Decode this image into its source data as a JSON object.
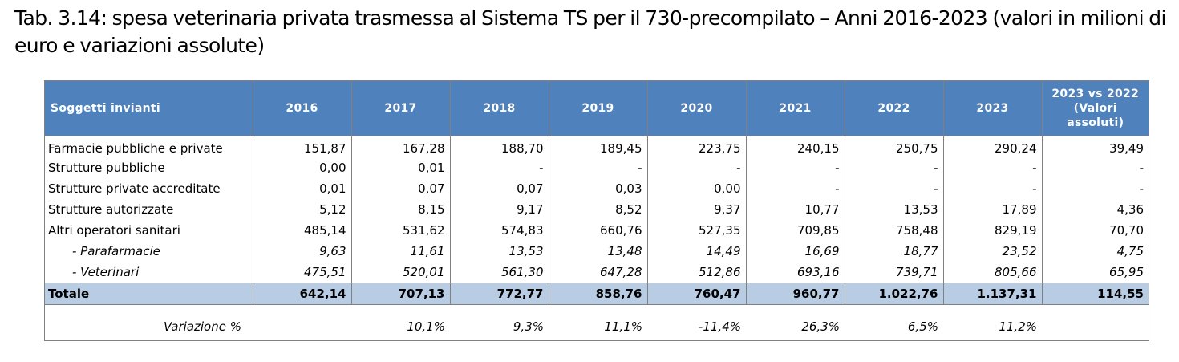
{
  "caption": "Tab. 3.14: spesa veterinaria privata trasmessa al Sistema TS per il 730-precompilato – Anni 2016-2023 (valori in milioni di euro e variazioni assolute)",
  "table": {
    "headers": [
      "Soggetti invianti",
      "2016",
      "2017",
      "2018",
      "2019",
      "2020",
      "2021",
      "2022",
      "2023",
      "2023 vs 2022",
      "(Valori assoluti)"
    ],
    "rows": [
      {
        "label": "Farmacie pubbliche e private",
        "values": [
          "151,87",
          "167,28",
          "188,70",
          "189,45",
          "223,75",
          "240,15",
          "250,75",
          "290,24",
          "39,49"
        ]
      },
      {
        "label": "Strutture pubbliche",
        "values": [
          "0,00",
          "0,01",
          "-",
          "-",
          "-",
          "-",
          "-",
          "-",
          "-"
        ]
      },
      {
        "label": "Strutture private accreditate",
        "values": [
          "0,01",
          "0,07",
          "0,07",
          "0,03",
          "0,00",
          "-",
          "-",
          "-",
          "-"
        ]
      },
      {
        "label": "Strutture autorizzate",
        "values": [
          "5,12",
          "8,15",
          "9,17",
          "8,52",
          "9,37",
          "10,77",
          "13,53",
          "17,89",
          "4,36"
        ]
      },
      {
        "label": "Altri operatori sanitari",
        "values": [
          "485,14",
          "531,62",
          "574,83",
          "660,76",
          "527,35",
          "709,85",
          "758,48",
          "829,19",
          "70,70"
        ]
      },
      {
        "label": "- Parafarmacie",
        "values": [
          "9,63",
          "11,61",
          "13,53",
          "13,48",
          "14,49",
          "16,69",
          "18,77",
          "23,52",
          "4,75"
        ]
      },
      {
        "label": "- Veterinari",
        "values": [
          "475,51",
          "520,01",
          "561,30",
          "647,28",
          "512,86",
          "693,16",
          "739,71",
          "805,66",
          "65,95"
        ]
      }
    ],
    "total": {
      "label": "Totale",
      "values": [
        "642,14",
        "707,13",
        "772,77",
        "858,76",
        "760,47",
        "960,77",
        "1.022,76",
        "1.137,31",
        "114,55"
      ]
    },
    "variation": {
      "label": "Variazione %",
      "values": [
        "",
        "10,1%",
        "9,3%",
        "11,1%",
        "-11,4%",
        "26,3%",
        "6,5%",
        "11,2%",
        ""
      ]
    }
  }
}
